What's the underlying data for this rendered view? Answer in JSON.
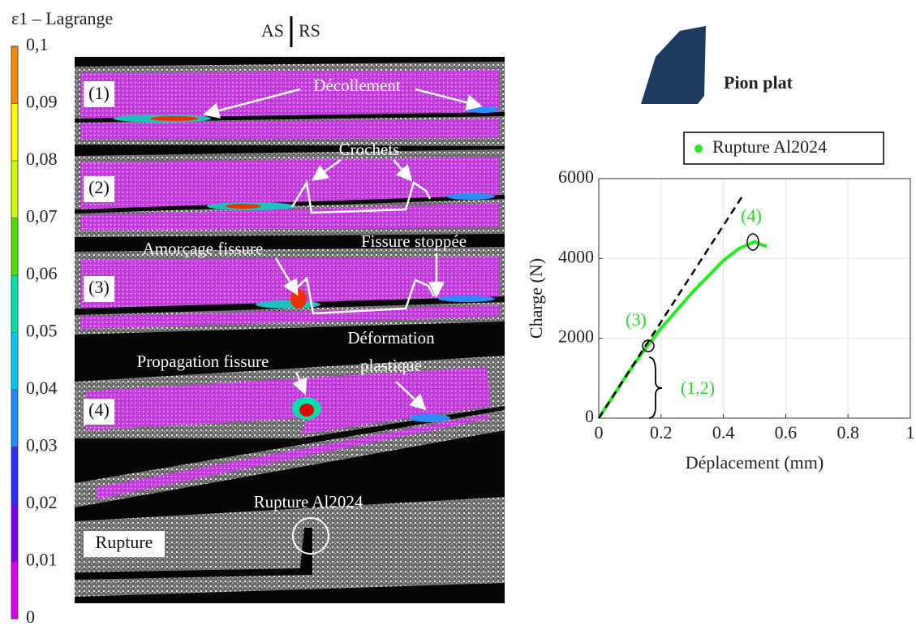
{
  "header": {
    "left": "AS",
    "right": "RS",
    "tool": "Pion plat"
  },
  "colorbar": {
    "title": "ε1 – Lagrange",
    "lim": [
      0,
      0.1
    ],
    "ticks": [
      {
        "value": 0,
        "label": "0"
      },
      {
        "value": 0.01,
        "label": "0,01"
      },
      {
        "value": 0.02,
        "label": "0,02"
      },
      {
        "value": 0.03,
        "label": "0,03"
      },
      {
        "value": 0.04,
        "label": "0,04"
      },
      {
        "value": 0.05,
        "label": "0,05"
      },
      {
        "value": 0.06,
        "label": "0,06"
      },
      {
        "value": 0.07,
        "label": "0,07"
      },
      {
        "value": 0.08,
        "label": "0,08"
      },
      {
        "value": 0.09,
        "label": "0,09"
      },
      {
        "value": 0.1,
        "label": "0,1"
      }
    ],
    "colors": [
      "#dd00ee",
      "#7a00ee",
      "#2d2dff",
      "#1f8cff",
      "#00c8ff",
      "#00e0a8",
      "#4ce000",
      "#c8ff00",
      "#ffff00",
      "#ff8800",
      "#ee0000"
    ]
  },
  "panels": [
    "(1)",
    "(2)",
    "(3)",
    "(4)",
    "Rupture"
  ],
  "annotations": {
    "decollement": "Décollement",
    "crochets": "Crochets",
    "amorcage": "Amorçage fissure",
    "stoppee": "Fissure stoppée",
    "propagation": "Propagation fissure",
    "deformation": [
      "Déformation",
      "plastique"
    ],
    "rupture": "Rupture Al2024"
  },
  "chart_data": {
    "type": "line",
    "xlabel": "Déplacement (mm)",
    "ylabel": "Charge (N)",
    "xlim": [
      0,
      1
    ],
    "ylim": [
      0,
      6000
    ],
    "xticks": [
      0,
      0.2,
      0.4,
      0.6,
      0.8,
      1
    ],
    "yticks": [
      0,
      2000,
      4000,
      6000
    ],
    "grid": true,
    "legend": "top-right",
    "series": [
      {
        "name": "Rupture Al2024",
        "color": "#22ee22",
        "style": "solid",
        "x": [
          0,
          0.05,
          0.1,
          0.15,
          0.2,
          0.25,
          0.3,
          0.35,
          0.4,
          0.45,
          0.5,
          0.52,
          0.54
        ],
        "values": [
          0,
          600,
          1200,
          1750,
          2250,
          2700,
          3150,
          3550,
          3950,
          4250,
          4420,
          4350,
          4300
        ]
      },
      {
        "color": "#000000",
        "style": "dashed",
        "x": [
          0,
          0.46
        ],
        "values": [
          0,
          5550
        ]
      }
    ],
    "annotations": [
      "(3)",
      "(4)",
      "(1,2)"
    ]
  }
}
